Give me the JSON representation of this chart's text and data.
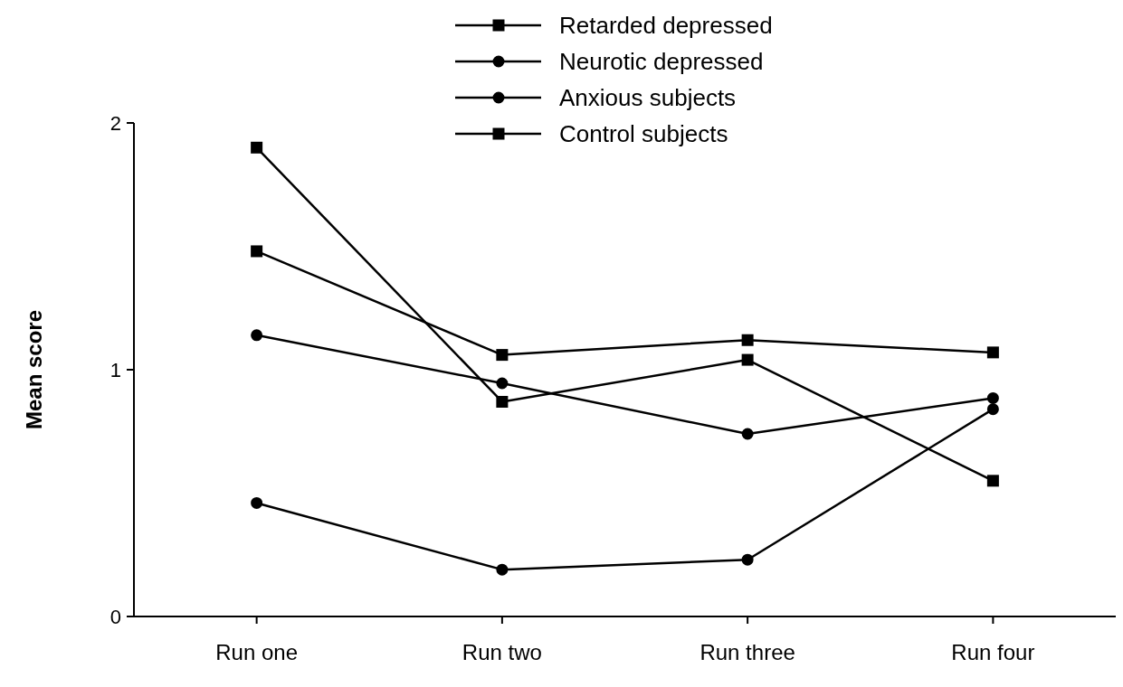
{
  "chart_data": {
    "type": "line",
    "ylabel": "Mean score",
    "categories": [
      "Run one",
      "Run two",
      "Run three",
      "Run four"
    ],
    "ylim": [
      0,
      2
    ],
    "yticks": [
      0,
      1,
      2
    ],
    "grid": false,
    "legend": "top",
    "line_style": "solid",
    "series": [
      {
        "name": "Retarded depressed",
        "color": "#000000",
        "marker": "square",
        "values": [
          1.48,
          1.06,
          1.12,
          1.07
        ]
      },
      {
        "name": "Neurotic depressed",
        "color": "#000000",
        "marker": "circle",
        "values": [
          1.14,
          0.945,
          0.74,
          0.885
        ]
      },
      {
        "name": "Anxious subjects",
        "color": "#000000",
        "marker": "circle",
        "values": [
          0.46,
          0.19,
          0.23,
          0.84
        ]
      },
      {
        "name": "Control subjects",
        "color": "#000000",
        "marker": "square",
        "values": [
          1.9,
          0.87,
          1.04,
          0.55
        ]
      }
    ]
  }
}
